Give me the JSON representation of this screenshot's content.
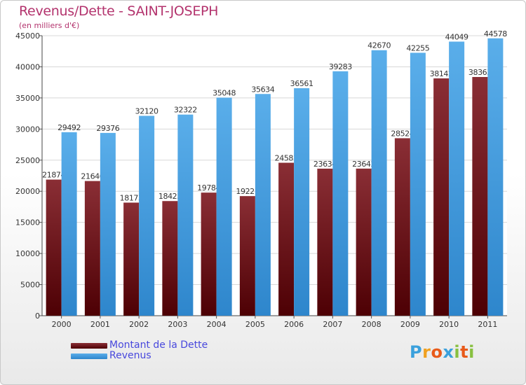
{
  "chart_data": {
    "type": "bar",
    "title": "Revenus/Dette - SAINT-JOSEPH",
    "subtitle": "(en milliers d'€)",
    "categories": [
      "2000",
      "2001",
      "2002",
      "2003",
      "2004",
      "2005",
      "2006",
      "2007",
      "2008",
      "2009",
      "2010",
      "2011"
    ],
    "series": [
      {
        "name": "Montant de la Dette",
        "values": [
          21874,
          21646,
          18173,
          18425,
          19784,
          19221,
          24581,
          23634,
          23642,
          28524,
          38142,
          38363
        ],
        "labels": [
          "21874",
          "21646",
          "18173",
          "18425",
          "19784",
          "19221",
          "24581",
          "23634",
          "23642",
          "28524",
          "38142",
          "38363"
        ],
        "color": "#7a1e24"
      },
      {
        "name": "Revenus",
        "values": [
          29492,
          29376,
          32120,
          32322,
          35048,
          35634,
          36561,
          39283,
          42670,
          42255,
          44049,
          44578
        ],
        "labels": [
          "29492",
          "29376",
          "32120",
          "32322",
          "35048",
          "35634",
          "36561",
          "39283",
          "42670",
          "42255",
          "44049",
          "44578"
        ],
        "color": "#4aa6e8"
      }
    ],
    "yticks": [
      "0",
      "5000",
      "10000",
      "15000",
      "20000",
      "25000",
      "30000",
      "35000",
      "40000",
      "45000"
    ],
    "ylim": [
      0,
      45000
    ],
    "grid": true,
    "legend": "bottom-left"
  },
  "logo": {
    "letters": [
      "P",
      "r",
      "o",
      "x",
      "i",
      "t",
      "i"
    ],
    "colors": [
      "#3aa0dc",
      "#f0a020",
      "#e85a1a",
      "#3aa0dc",
      "#88c040",
      "#e85a1a",
      "#88c040"
    ]
  }
}
